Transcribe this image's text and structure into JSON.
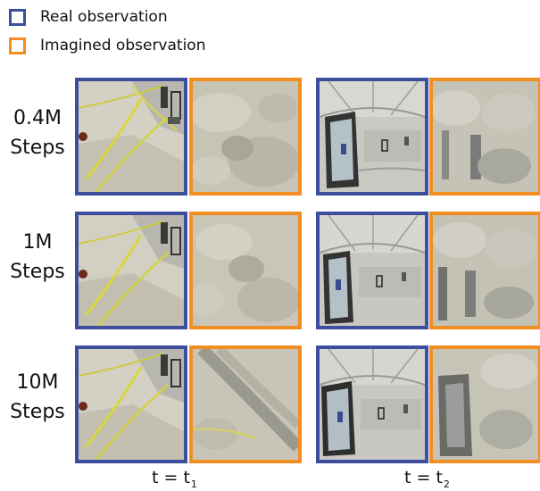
{
  "colors": {
    "real": "#3d4e9c",
    "imagined": "#f28d22"
  },
  "legend": {
    "real_label": "Real observation",
    "imagined_label": "Imagined observation"
  },
  "rows": [
    {
      "line1": "0.4M",
      "line2": "Steps"
    },
    {
      "line1": "1M",
      "line2": "Steps"
    },
    {
      "line1": "10M",
      "line2": "Steps"
    }
  ],
  "time_labels": [
    {
      "base": "t = t",
      "sub": "1"
    },
    {
      "base": "t = t",
      "sub": "2"
    }
  ]
}
